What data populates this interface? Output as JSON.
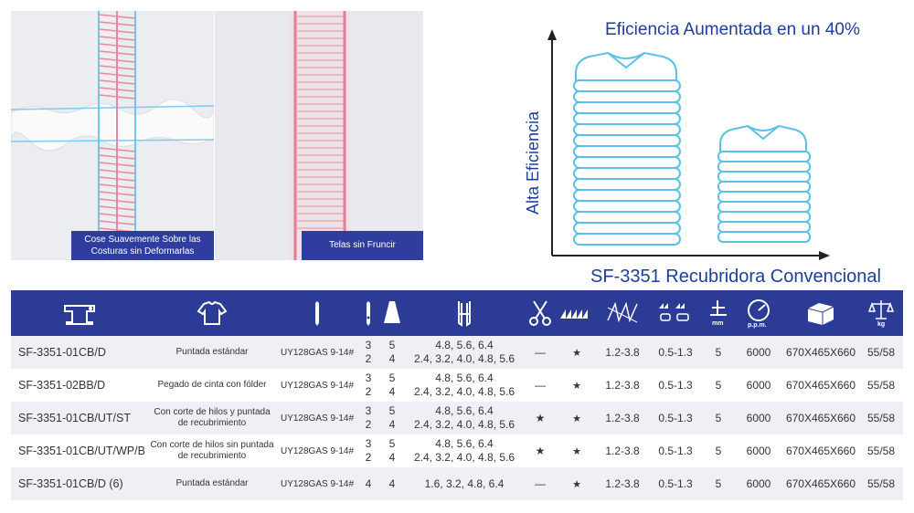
{
  "photos": {
    "left_caption": "Cose Suavemente Sobre las Costuras sin Deformarlas",
    "right_caption": "Telas sin Fruncir"
  },
  "graphic": {
    "title": "Eficiencia Aumentada en un 40%",
    "y_label": "Alta Eficiencia",
    "bottom_label": "SF-3351 Recubridora Convencional"
  },
  "table": {
    "header_icons": [
      "sewing-machine-icon",
      "garment-icon",
      "needle-icon",
      "needle-thread-icon",
      "presser-foot-icon",
      "scissors-icon",
      "feed-dog-icon",
      "stitch-icon",
      "differential-feed-icon",
      "stitch-length-icon",
      "speed-gauge-icon",
      "box-dimensions-icon",
      "scale-weight-icon"
    ],
    "rows": [
      {
        "model": "SF-3351-01CB/D",
        "application": "Puntada estándar",
        "needle": "UY128GAS 9-14#",
        "needles_top": "3",
        "needles_bottom": "2",
        "threads_top": "5",
        "threads_bottom": "4",
        "gauge_top": "4.8, 5.6, 6.4",
        "gauge_bottom": "2.4, 3.2, 4.0, 4.8, 5.6",
        "cutter": "—",
        "feed": "★",
        "stitch_length": "1.2-3.8",
        "differential": "0.5-1.3",
        "foot_lift": "5",
        "speed": "6000",
        "dimensions": "670X465X660",
        "weight": "55/58"
      },
      {
        "model": "SF-3351-02BB/D",
        "application": "Pegado de cinta con fólder",
        "needle": "UY128GAS 9-14#",
        "needles_top": "3",
        "needles_bottom": "2",
        "threads_top": "5",
        "threads_bottom": "4",
        "gauge_top": "4.8, 5.6, 6.4",
        "gauge_bottom": "2.4, 3.2, 4.0, 4.8, 5.6",
        "cutter": "—",
        "feed": "★",
        "stitch_length": "1.2-3.8",
        "differential": "0.5-1.3",
        "foot_lift": "5",
        "speed": "6000",
        "dimensions": "670X465X660",
        "weight": "55/58"
      },
      {
        "model": "SF-3351-01CB/UT/ST",
        "application": "Con corte de hilos y puntada de recubrimiento",
        "needle": "UY128GAS 9-14#",
        "needles_top": "3",
        "needles_bottom": "2",
        "threads_top": "5",
        "threads_bottom": "4",
        "gauge_top": "4.8, 5.6, 6.4",
        "gauge_bottom": "2.4, 3.2, 4.0, 4.8, 5.6",
        "cutter": "★",
        "feed": "★",
        "stitch_length": "1.2-3.8",
        "differential": "0.5-1.3",
        "foot_lift": "5",
        "speed": "6000",
        "dimensions": "670X465X660",
        "weight": "55/58"
      },
      {
        "model": "SF-3351-01CB/UT/WP/B",
        "application": "Con corte de hilos sin puntada de recubrimiento",
        "needle": "UY128GAS 9-14#",
        "needles_top": "3",
        "needles_bottom": "2",
        "threads_top": "5",
        "threads_bottom": "4",
        "gauge_top": "4.8, 5.6, 6.4",
        "gauge_bottom": "2.4, 3.2, 4.0, 4.8, 5.6",
        "cutter": "★",
        "feed": "★",
        "stitch_length": "1.2-3.8",
        "differential": "0.5-1.3",
        "foot_lift": "5",
        "speed": "6000",
        "dimensions": "670X465X660",
        "weight": "55/58"
      },
      {
        "model": "SF-3351-01CB/D (6)",
        "application": "Puntada estándar",
        "needle": "UY128GAS 9-14#",
        "needles_top": "4",
        "needles_bottom": "",
        "threads_top": "4",
        "threads_bottom": "",
        "gauge_top": "1.6, 3.2, 4.8, 6.4",
        "gauge_bottom": "",
        "cutter": "—",
        "feed": "★",
        "stitch_length": "1.2-3.8",
        "differential": "0.5-1.3",
        "foot_lift": "5",
        "speed": "6000",
        "dimensions": "670X465X660",
        "weight": "55/58"
      }
    ]
  },
  "icon_labels": {
    "speed_unit": "p.p.m.",
    "length_unit": "mm",
    "weight_unit": "kg"
  },
  "colors": {
    "header_blue": "#2b3b96",
    "caption_blue": "#2f3e9e",
    "title_blue": "#1d3f9c",
    "shirt_blue": "#5bc0e8",
    "stitch_pink": "#e8899f",
    "stitch_cyan": "#6ec6ec"
  }
}
